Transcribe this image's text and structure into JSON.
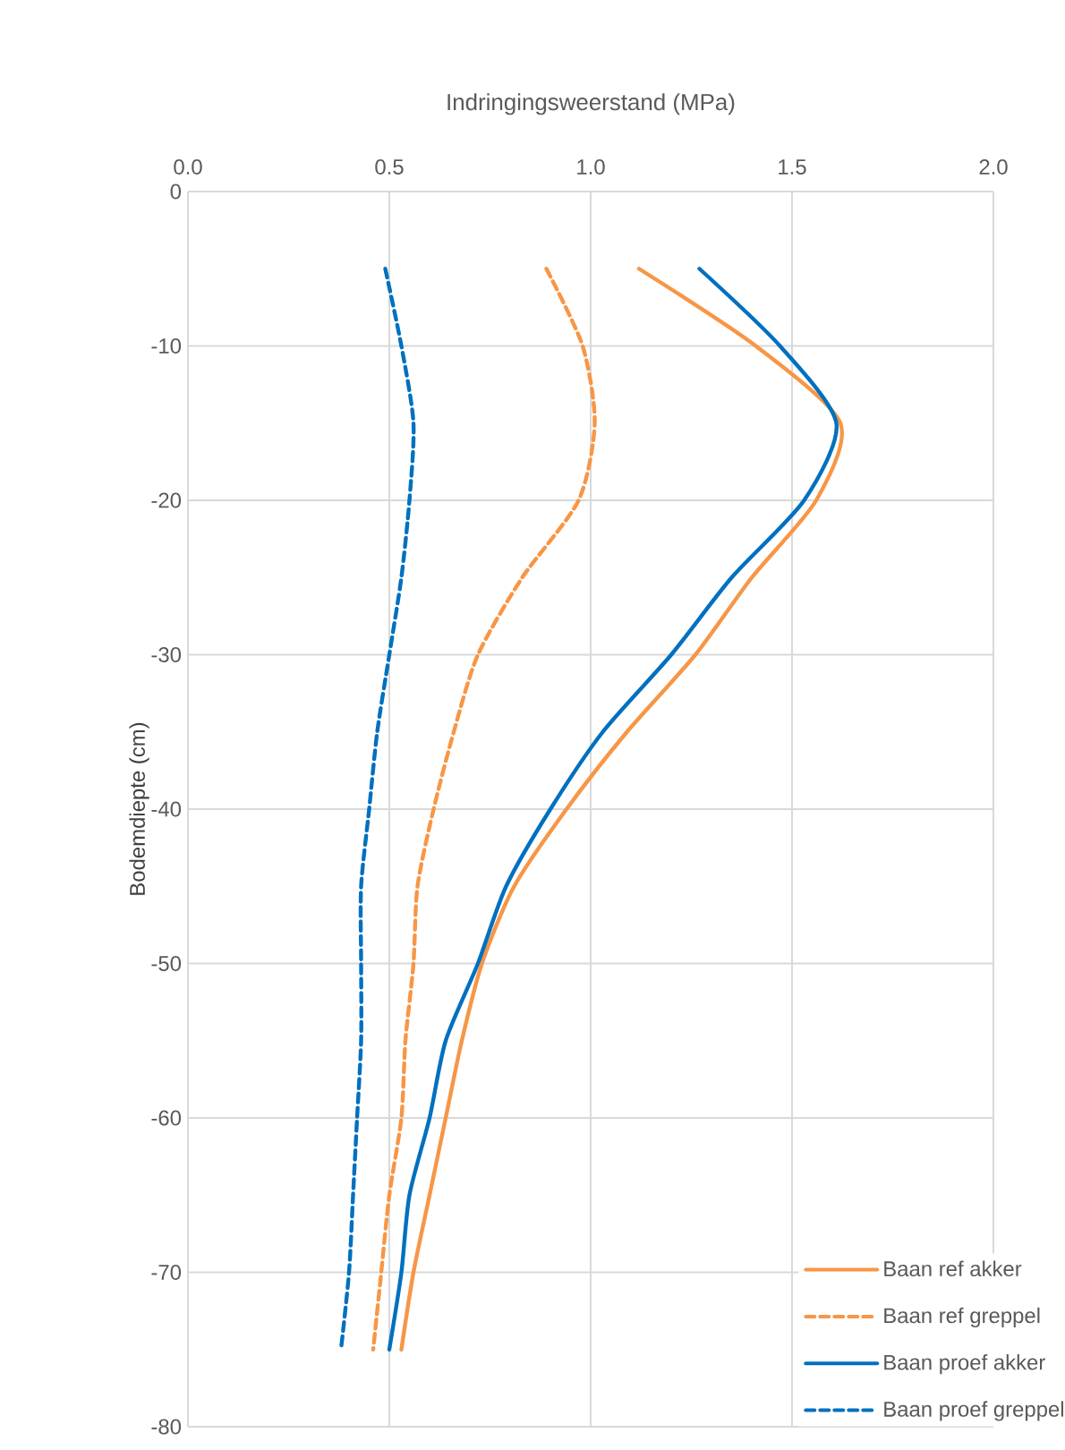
{
  "chart_data": {
    "type": "line",
    "xlabel": "Indringingsweerstand (MPa)",
    "ylabel": "Bodemdiepte (cm)",
    "xlim": [
      0,
      2
    ],
    "xticks": [
      {
        "value": 0,
        "label": "0.0"
      },
      {
        "value": 0.5,
        "label": "0.5"
      },
      {
        "value": 1,
        "label": "1.0"
      },
      {
        "value": 1.5,
        "label": "1.5"
      },
      {
        "value": 2,
        "label": "2.0"
      }
    ],
    "ylim": [
      -80,
      0
    ],
    "yticks": [
      0,
      -10,
      -20,
      -30,
      -40,
      -50,
      -60,
      -70,
      -80
    ],
    "grid": true,
    "legend": "bottom right",
    "series": [
      {
        "name": "Baan ref akker",
        "color": "#f79646",
        "line_style": "solid",
        "x": [
          1.12,
          1.41,
          1.62,
          1.56,
          1.4,
          1.26,
          1.09,
          0.94,
          0.81,
          0.73,
          0.68,
          0.64,
          0.6,
          0.56,
          0.53
        ],
        "values": [
          -5,
          -10,
          -15,
          -20,
          -25,
          -30,
          -35,
          -40,
          -45,
          -50,
          -55,
          -60,
          -65,
          -70,
          -75
        ]
      },
      {
        "name": "Baan ref greppel",
        "color": "#f79646",
        "line_style": "dashed",
        "x": [
          0.89,
          0.98,
          1.01,
          0.97,
          0.83,
          0.72,
          0.66,
          0.61,
          0.57,
          0.56,
          0.54,
          0.53,
          0.5,
          0.48,
          0.46
        ],
        "values": [
          -5,
          -10,
          -15,
          -20,
          -25,
          -30,
          -35,
          -40,
          -45,
          -50,
          -55,
          -60,
          -65,
          -70,
          -75
        ]
      },
      {
        "name": "Baan proef akker",
        "color": "#0070c0",
        "line_style": "solid",
        "x": [
          1.27,
          1.47,
          1.61,
          1.53,
          1.35,
          1.2,
          1.03,
          0.9,
          0.79,
          0.72,
          0.64,
          0.6,
          0.55,
          0.53,
          0.5
        ],
        "values": [
          -5,
          -10,
          -15,
          -20,
          -25,
          -30,
          -35,
          -40,
          -45,
          -50,
          -55,
          -60,
          -65,
          -70,
          -75
        ]
      },
      {
        "name": "Baan proef greppel",
        "color": "#0070c0",
        "line_style": "dashed",
        "x": [
          0.49,
          0.53,
          0.56,
          0.55,
          0.53,
          0.5,
          0.47,
          0.45,
          0.43,
          0.43,
          0.43,
          0.42,
          0.41,
          0.4,
          0.38
        ],
        "values": [
          -5,
          -10,
          -15,
          -20,
          -25,
          -30,
          -35,
          -40,
          -45,
          -50,
          -55,
          -60,
          -65,
          -70,
          -75
        ]
      }
    ]
  }
}
